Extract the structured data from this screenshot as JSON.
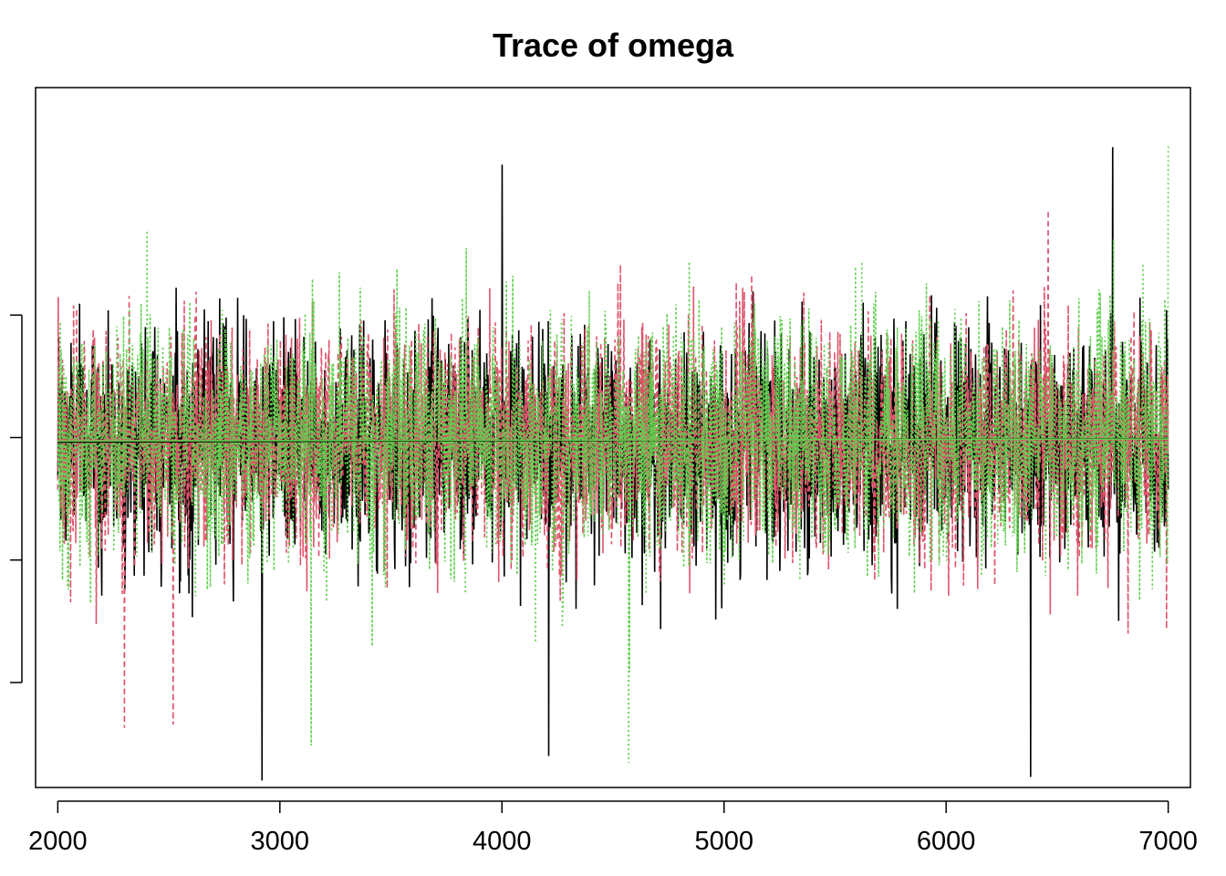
{
  "chart_data": {
    "type": "line",
    "title": "Trace of omega",
    "xlabel": "",
    "ylabel": "",
    "xlim": [
      1900,
      7100
    ],
    "ylim": [
      -1.0,
      1.0
    ],
    "x_ticks": [
      2000,
      3000,
      4000,
      5000,
      6000,
      7000
    ],
    "x_tick_labels": [
      "2000",
      "3000",
      "4000",
      "5000",
      "6000",
      "7000"
    ],
    "y_ticks": [
      -0.7,
      -0.35,
      0.0,
      0.35
    ],
    "y_tick_labels": [
      "",
      "",
      "",
      ""
    ],
    "grid": false,
    "legend": "none",
    "series": [
      {
        "color": "#000000",
        "line_style": "solid",
        "x_range": [
          2000,
          7000
        ],
        "mean": -0.01,
        "sd": 0.16,
        "peaks": [
          {
            "x": 4000,
            "y": 0.78
          },
          {
            "x": 6750,
            "y": 0.83
          },
          {
            "x": 2920,
            "y": -0.98
          },
          {
            "x": 6380,
            "y": -0.97
          },
          {
            "x": 4210,
            "y": -0.91
          }
        ],
        "running_mean": [
          {
            "x": 2000,
            "y": -0.013
          },
          {
            "x": 7000,
            "y": -0.003
          }
        ]
      },
      {
        "color": "#DF536B",
        "line_style": "dashed",
        "x_range": [
          2000,
          7000
        ],
        "mean": -0.008,
        "sd": 0.16,
        "peaks": [
          {
            "x": 6460,
            "y": 0.65
          },
          {
            "x": 2300,
            "y": -0.83
          },
          {
            "x": 2520,
            "y": -0.82
          }
        ],
        "running_mean": [
          {
            "x": 2000,
            "y": -0.008
          },
          {
            "x": 7000,
            "y": -0.006
          }
        ]
      },
      {
        "color": "#61D04F",
        "line_style": "dotted",
        "x_range": [
          2000,
          7000
        ],
        "mean": -0.008,
        "sd": 0.17,
        "peaks": [
          {
            "x": 7000,
            "y": 0.84
          },
          {
            "x": 4570,
            "y": -0.93
          },
          {
            "x": 3140,
            "y": -0.88
          }
        ],
        "running_mean": [
          {
            "x": 2000,
            "y": -0.01
          },
          {
            "x": 7000,
            "y": -0.004
          }
        ]
      }
    ]
  }
}
